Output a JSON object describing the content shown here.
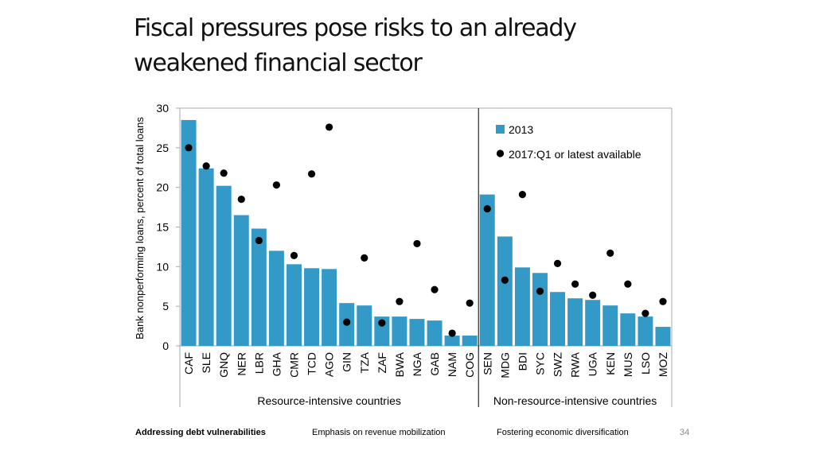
{
  "slide": {
    "title_line1": "Fiscal pressures pose risks to an already",
    "title_line2": "weakened financial sector",
    "page_number": "34"
  },
  "footer": {
    "items": [
      "Addressing debt vulnerabilities",
      "Emphasis on revenue mobilization",
      "Fostering economic diversification"
    ],
    "active_index": 0
  },
  "colors": {
    "bar": "#3399c6",
    "dot": "#000000",
    "axis": "#aaaaaa",
    "divider": "#000000"
  },
  "chart_data": {
    "type": "bar",
    "title": "",
    "ylabel": "Bank nonperforming loans, percent of total loans",
    "xlabel": "",
    "ylim": [
      0,
      30
    ],
    "yticks": [
      0,
      5,
      10,
      15,
      20,
      25,
      30
    ],
    "categories": [
      "CAF",
      "SLE",
      "GNQ",
      "NER",
      "LBR",
      "GHA",
      "CMR",
      "TCD",
      "AGO",
      "GIN",
      "TZA",
      "ZAF",
      "BWA",
      "NGA",
      "GAB",
      "NAM",
      "COG",
      "SEN",
      "MDG",
      "BDI",
      "SYC",
      "SWZ",
      "RWA",
      "UGA",
      "KEN",
      "MUS",
      "LSO",
      "MOZ"
    ],
    "groups": [
      {
        "label": "Resource-intensive countries",
        "start": 0,
        "end": 16
      },
      {
        "label": "Non-resource-intensive countries",
        "start": 17,
        "end": 27
      }
    ],
    "legend_position": "top-right",
    "series": [
      {
        "name": "2013",
        "kind": "bar",
        "values": [
          28.5,
          22.4,
          20.2,
          16.5,
          14.8,
          12.0,
          10.3,
          9.8,
          9.7,
          5.4,
          5.1,
          3.7,
          3.7,
          3.4,
          3.2,
          1.3,
          1.3,
          19.1,
          13.8,
          9.9,
          9.2,
          6.8,
          6.0,
          5.8,
          5.1,
          4.1,
          3.7,
          2.4
        ]
      },
      {
        "name": "2017:Q1 or latest available",
        "kind": "scatter",
        "values": [
          25.0,
          22.7,
          21.8,
          18.5,
          13.3,
          20.3,
          11.4,
          21.7,
          27.6,
          3.0,
          11.1,
          2.9,
          5.6,
          12.9,
          7.1,
          1.6,
          5.4,
          17.3,
          8.3,
          19.1,
          6.9,
          10.4,
          7.8,
          6.4,
          11.7,
          7.8,
          4.1,
          5.6
        ]
      }
    ]
  }
}
